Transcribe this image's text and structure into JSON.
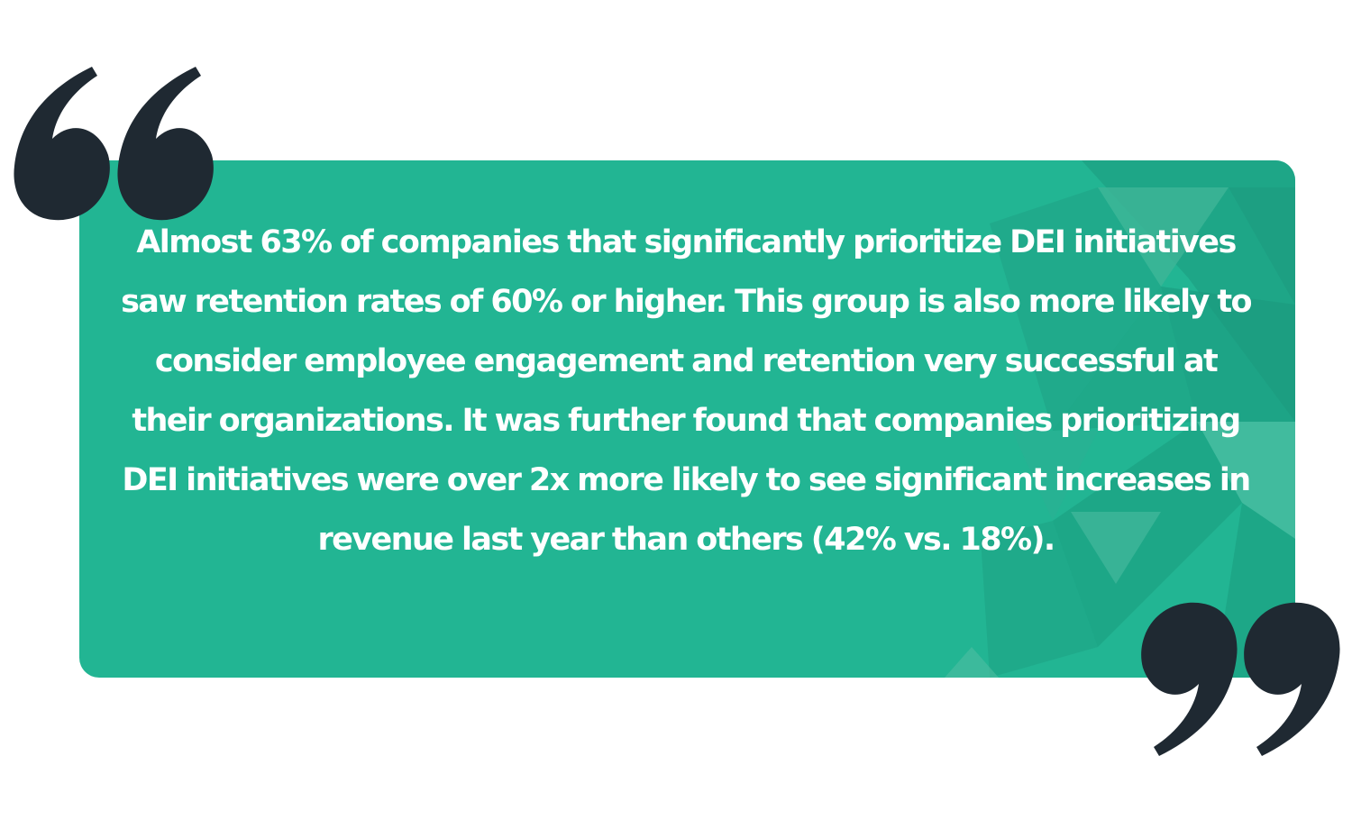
{
  "quote": {
    "text": "Almost 63% of companies that significantly prioritize DEI initiatives saw retention rates of 60% or higher. This group is also more likely to consider employee engagement and retention very successful at their organizations. It was further found that companies prioritizing DEI initiatives were over 2x more likely to see significant increases in revenue last year than others (42% vs. 18%)."
  },
  "colors": {
    "card_background": "#22b593",
    "text": "#ffffff",
    "quote_marks": "#1f2932",
    "pattern_dark": "#1a9a7d",
    "pattern_light": "#4fbea2"
  },
  "icons": {
    "open_quote": "left-double-quote-icon",
    "close_quote": "right-double-quote-icon"
  }
}
